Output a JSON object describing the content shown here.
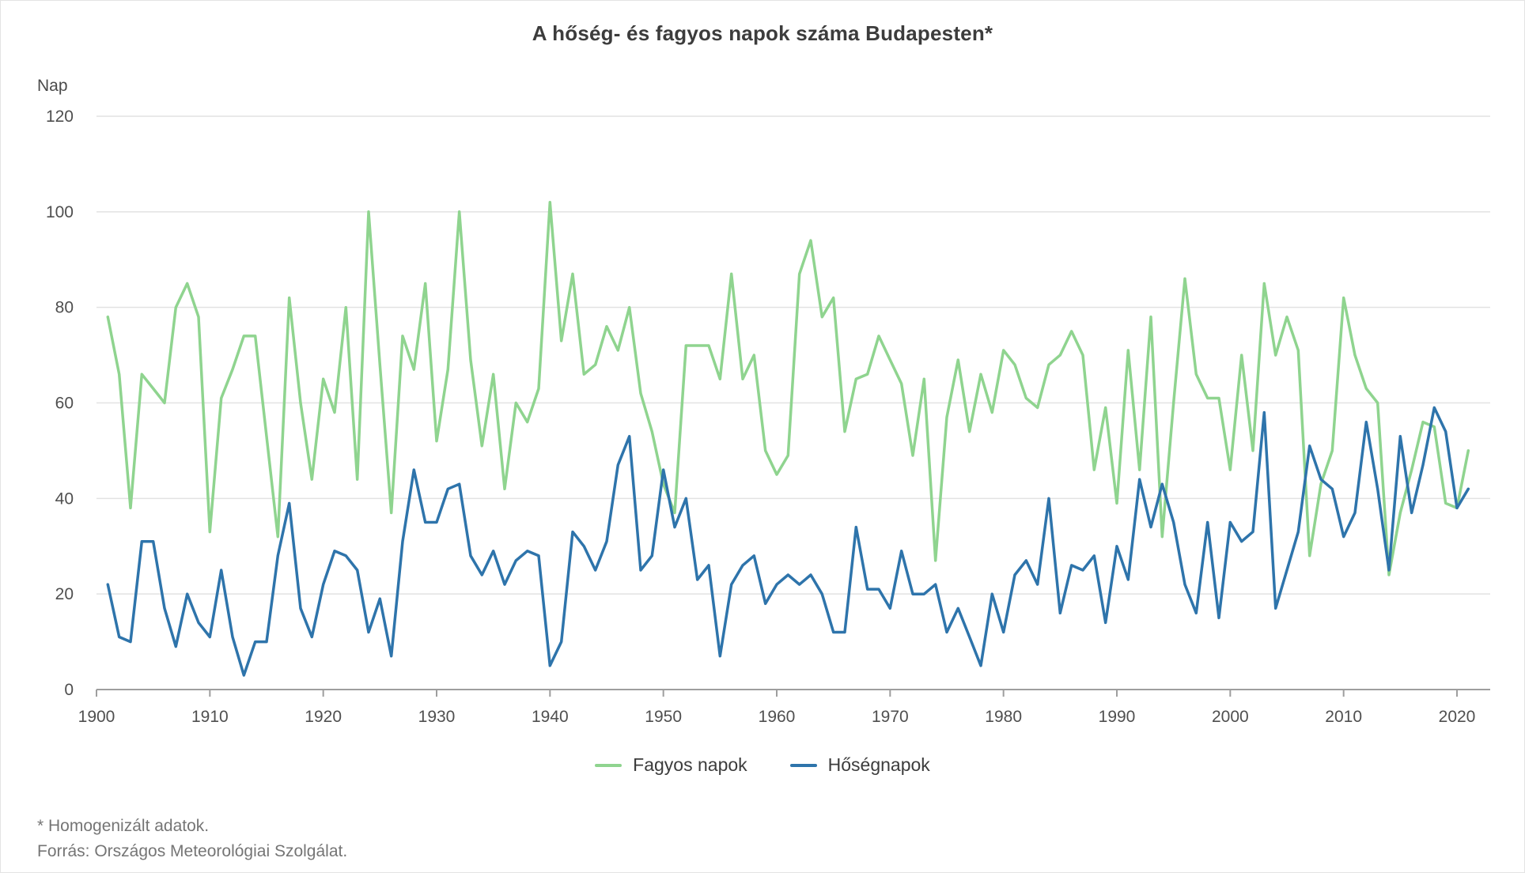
{
  "title": "A hőség- és fagyos napok száma Budapesten*",
  "y_axis": {
    "unit_label": "Nap",
    "ticks": [
      0,
      20,
      40,
      60,
      80,
      100,
      120
    ]
  },
  "x_axis": {
    "ticks": [
      1900,
      1910,
      1920,
      1930,
      1940,
      1950,
      1960,
      1970,
      1980,
      1990,
      2000,
      2010,
      2020
    ]
  },
  "legend": {
    "items": [
      {
        "label": "Fagyos napok",
        "color": "#8FD48F"
      },
      {
        "label": "Hőségnapok",
        "color": "#2E74AB"
      }
    ]
  },
  "footnotes": {
    "note": "* Homogenizált adatok.",
    "source": "Forrás: Országos Meteorológiai Szolgálat."
  },
  "colors": {
    "frost_line": "#8FD48F",
    "heat_line": "#2E74AB",
    "gridline": "#e2e2e2",
    "axis_line": "#9e9e9e",
    "tick_text": "#4f4f4f"
  },
  "chart_data": {
    "type": "line",
    "x_start": 1901,
    "x_end": 2021,
    "x_step": 1,
    "xlim": [
      1900,
      2022
    ],
    "ylim": [
      0,
      120
    ],
    "grid": "horizontal",
    "legend_position": "bottom",
    "title": "A hőség- és fagyos napok száma Budapesten*",
    "ylabel": "Nap",
    "series": [
      {
        "name": "Fagyos napok",
        "color": "#8FD48F",
        "values": [
          78,
          66,
          38,
          66,
          63,
          60,
          80,
          85,
          78,
          33,
          61,
          67,
          74,
          74,
          53,
          32,
          82,
          60,
          44,
          65,
          58,
          80,
          44,
          100,
          68,
          37,
          74,
          67,
          85,
          52,
          67,
          100,
          69,
          51,
          66,
          42,
          60,
          56,
          63,
          102,
          73,
          87,
          66,
          68,
          76,
          71,
          80,
          62,
          54,
          43,
          37,
          72,
          72,
          72,
          65,
          87,
          65,
          70,
          50,
          45,
          49,
          87,
          94,
          78,
          82,
          54,
          65,
          66,
          74,
          69,
          64,
          49,
          65,
          27,
          57,
          69,
          54,
          66,
          58,
          71,
          68,
          61,
          59,
          68,
          70,
          75,
          70,
          46,
          59,
          39,
          71,
          46,
          78,
          32,
          60,
          86,
          66,
          61,
          61,
          46,
          70,
          50,
          85,
          70,
          78,
          71,
          28,
          43,
          50,
          82,
          70,
          63,
          60,
          24,
          37,
          46,
          56,
          55,
          39,
          38,
          50
        ]
      },
      {
        "name": "Hőségnapok",
        "color": "#2E74AB",
        "values": [
          22,
          11,
          10,
          31,
          31,
          17,
          9,
          20,
          14,
          11,
          25,
          11,
          3,
          10,
          10,
          28,
          39,
          17,
          11,
          22,
          29,
          28,
          25,
          12,
          19,
          7,
          31,
          46,
          35,
          35,
          42,
          43,
          28,
          24,
          29,
          22,
          27,
          29,
          28,
          5,
          10,
          33,
          30,
          25,
          31,
          47,
          53,
          25,
          28,
          46,
          34,
          40,
          23,
          26,
          7,
          22,
          26,
          28,
          18,
          22,
          24,
          22,
          24,
          20,
          12,
          12,
          34,
          21,
          21,
          17,
          29,
          20,
          20,
          22,
          12,
          17,
          11,
          5,
          20,
          12,
          24,
          27,
          22,
          40,
          16,
          26,
          25,
          28,
          14,
          30,
          23,
          44,
          34,
          43,
          35,
          22,
          16,
          35,
          15,
          35,
          31,
          33,
          58,
          17,
          25,
          33,
          51,
          44,
          42,
          32,
          37,
          56,
          42,
          25,
          53,
          37,
          47,
          59,
          54,
          38,
          42
        ]
      }
    ]
  }
}
